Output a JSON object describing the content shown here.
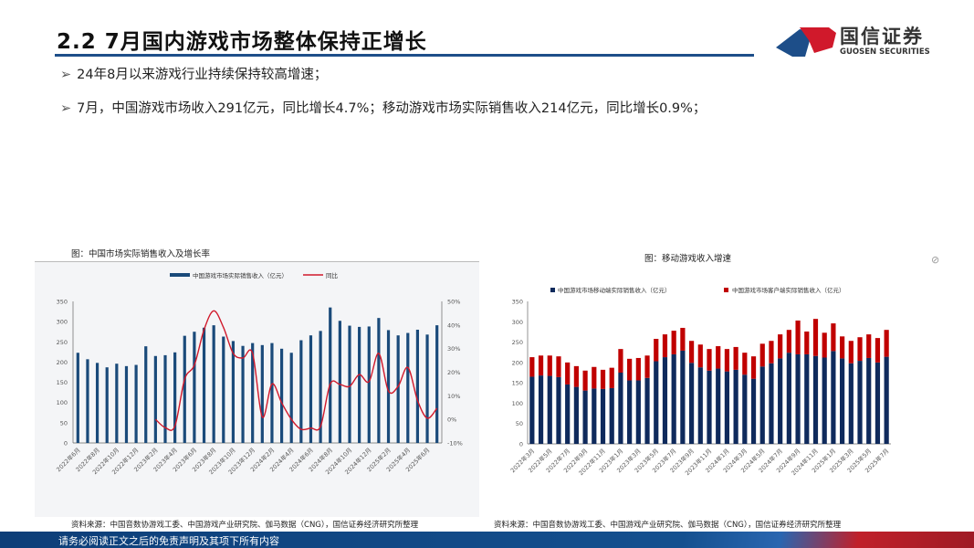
{
  "header": {
    "title": "2.2 7月国内游戏市场整体保持正增长",
    "logo_cn": "国信证券",
    "logo_en": "GUOSEN SECURITIES"
  },
  "bullets": [
    "24年8月以来游戏行业持续保持较高增速；",
    "7月，中国游戏市场收入291亿元，同比增长4.7%；移动游戏市场实际销售收入214亿元，同比增长0.9%；"
  ],
  "bullet_icon": "arrow-right-icon",
  "footer": {
    "disclaimer": "请务必阅读正文之后的免责声明及其项下所有内容"
  },
  "chart_data": [
    {
      "type": "bar+line",
      "title": "图：中国市场实际销售收入及增长率",
      "source": "资料来源：中国音数协游戏工委、中国游戏产业研究院、伽马数据（CNG），国信证券经济研究所整理",
      "legend_position": "top",
      "grid": false,
      "categories": [
        "2022年6月",
        "2022年7月",
        "2022年8月",
        "2022年9月",
        "2022年10月",
        "2022年11月",
        "2022年12月",
        "2023年1月",
        "2023年2月",
        "2023年3月",
        "2023年4月",
        "2023年5月",
        "2023年6月",
        "2023年7月",
        "2023年8月",
        "2023年9月",
        "2023年10月",
        "2023年11月",
        "2023年12月",
        "2024年1月",
        "2024年2月",
        "2024年3月",
        "2024年4月",
        "2024年5月",
        "2024年6月",
        "2024年7月",
        "2024年8月",
        "2024年9月",
        "2024年10月",
        "2024年11月",
        "2024年12月",
        "2025年1月",
        "2025年2月",
        "2025年3月",
        "2025年4月",
        "2025年5月",
        "2025年6月",
        "2025年7月"
      ],
      "tick_labels": [
        "2022年6月",
        "2022年8月",
        "2022年10月",
        "2022年12月",
        "2023年2月",
        "2023年4月",
        "2023年6月",
        "2023年8月",
        "2023年10月",
        "2023年12月",
        "2024年2月",
        "2024年4月",
        "2024年6月",
        "2024年8月",
        "2024年10月",
        "2024年12月",
        "2025年2月",
        "2025年4月",
        "2025年6月"
      ],
      "series": [
        {
          "name": "中国游戏市场实际销售收入（亿元）",
          "type": "bar",
          "axis": "left",
          "color": "#1a4a7a",
          "values": [
            223,
            207,
            198,
            187,
            196,
            190,
            193,
            239,
            215,
            217,
            224,
            265,
            275,
            285,
            291,
            263,
            252,
            240,
            247,
            242,
            247,
            233,
            223,
            254,
            266,
            277,
            335,
            302,
            290,
            287,
            288,
            309,
            279,
            266,
            272,
            280,
            268,
            291
          ]
        },
        {
          "name": "同比",
          "type": "line",
          "axis": "right",
          "color": "#d0192b",
          "values": [
            null,
            null,
            null,
            null,
            null,
            null,
            null,
            null,
            0,
            -3.5,
            -2.8,
            17,
            23,
            38,
            46,
            39,
            28,
            26,
            28,
            1,
            15,
            7,
            0,
            -4.2,
            -3.7,
            -3,
            15,
            14.8,
            14,
            19,
            16,
            28,
            12,
            14,
            22,
            8,
            0.5,
            4.7
          ]
        }
      ],
      "ylim_left": [
        0,
        350
      ],
      "yticks_left": [
        0,
        50,
        100,
        150,
        200,
        250,
        300,
        350
      ],
      "ylim_right": [
        -10,
        50
      ],
      "yticks_right": [
        "-10%",
        "0%",
        "10%",
        "20%",
        "30%",
        "40%",
        "50%"
      ]
    },
    {
      "type": "stacked-bar",
      "title": "图：移动游戏收入增速",
      "source": "资料来源：中国音数协游戏工委、中国游戏产业研究院、伽马数据（CNG），国信证券经济研究所整理",
      "legend_position": "top",
      "grid": false,
      "categories": [
        "2022年3月",
        "2022年4月",
        "2022年5月",
        "2022年6月",
        "2022年7月",
        "2022年8月",
        "2022年9月",
        "2022年10月",
        "2022年11月",
        "2022年12月",
        "2023年1月",
        "2023年2月",
        "2023年3月",
        "2023年4月",
        "2023年5月",
        "2023年6月",
        "2023年7月",
        "2023年8月",
        "2023年9月",
        "2023年10月",
        "2023年11月",
        "2023年12月",
        "2024年1月",
        "2024年2月",
        "2024年3月",
        "2024年4月",
        "2024年5月",
        "2024年6月",
        "2024年7月",
        "2024年8月",
        "2024年9月",
        "2024年10月",
        "2024年11月",
        "2024年12月",
        "2025年1月",
        "2025年2月",
        "2025年3月",
        "2025年4月",
        "2025年5月",
        "2025年6月",
        "2025年7月"
      ],
      "tick_labels": [
        "2022年3月",
        "2022年5月",
        "2022年7月",
        "2022年9月",
        "2022年11月",
        "2023年1月",
        "2023年3月",
        "2023年5月",
        "2023年7月",
        "2023年9月",
        "2023年11月",
        "2024年1月",
        "2024年3月",
        "2024年5月",
        "2024年7月",
        "2024年9月",
        "2024年11月",
        "2025年1月",
        "2025年3月",
        "2025年5月",
        "2025年7月"
      ],
      "series": [
        {
          "name": "中国游戏市场移动端实际销售收入（亿元）",
          "color": "#0f2a5c",
          "values": [
            165,
            168,
            167,
            164,
            146,
            140,
            131,
            136,
            135,
            137,
            175,
            156,
            156,
            162,
            203,
            213,
            220,
            229,
            199,
            188,
            180,
            185,
            178,
            182,
            170,
            160,
            190,
            198,
            210,
            224,
            220,
            220,
            216,
            212,
            228,
            210,
            198,
            204,
            211,
            200,
            214
          ]
        },
        {
          "name": "中国游戏市场客户端实际销售收入（亿元）",
          "color": "#c00000",
          "values": [
            48,
            49,
            50,
            51,
            54,
            51,
            49,
            53,
            47,
            50,
            58,
            53,
            55,
            55,
            55,
            56,
            58,
            56,
            54,
            56,
            53,
            55,
            55,
            56,
            54,
            55,
            56,
            55,
            59,
            56,
            83,
            56,
            91,
            61,
            68,
            54,
            55,
            58,
            58,
            60,
            66
          ]
        }
      ],
      "ylim": [
        0,
        350
      ],
      "yticks": [
        0,
        50,
        100,
        150,
        200,
        250,
        300,
        350
      ]
    }
  ]
}
